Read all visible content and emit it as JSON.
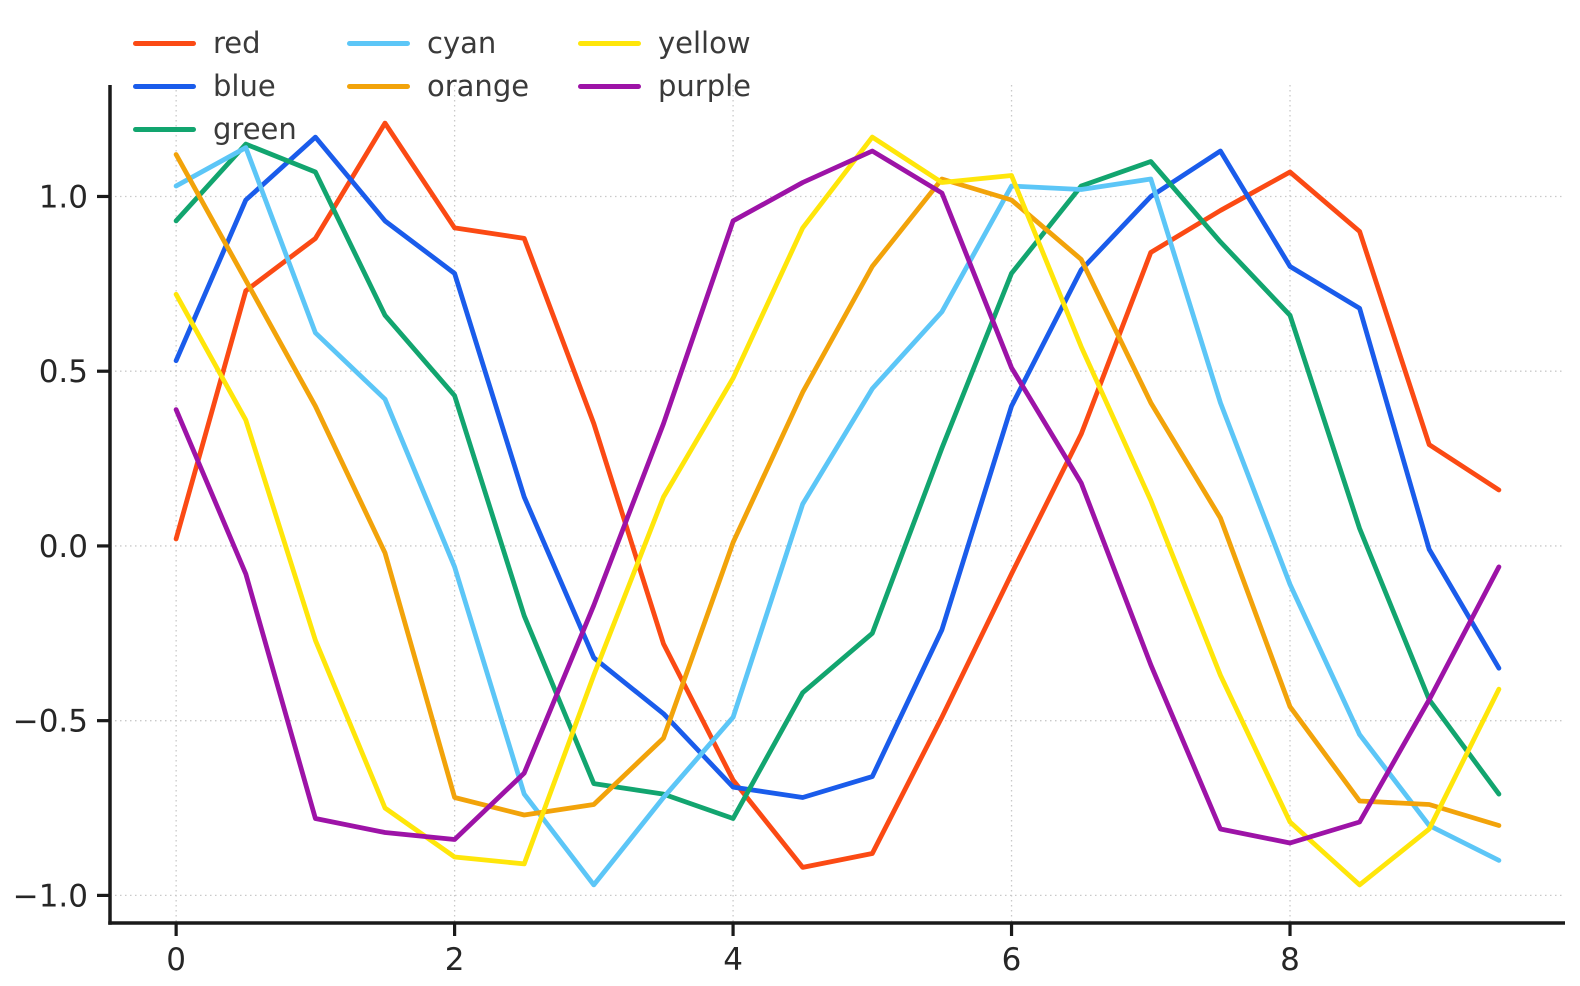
{
  "chart_data": {
    "type": "line",
    "title": "",
    "xlabel": "",
    "ylabel": "",
    "grid": true,
    "legend_position": "upper-left",
    "x": [
      0,
      0.5,
      1,
      1.5,
      2,
      2.5,
      3,
      3.5,
      4,
      4.5,
      5,
      5.5,
      6,
      6.5,
      7,
      7.5,
      8,
      8.5,
      9,
      9.5
    ],
    "series": [
      {
        "name": "red",
        "color": "#fb4a14",
        "values": [
          0.02,
          0.73,
          0.88,
          1.21,
          0.91,
          0.88,
          0.35,
          -0.28,
          -0.67,
          -0.92,
          -0.88,
          -0.49,
          -0.08,
          0.32,
          0.84,
          0.96,
          1.07,
          0.9,
          0.29,
          0.16
        ]
      },
      {
        "name": "blue",
        "color": "#1a5ceb",
        "values": [
          0.53,
          0.99,
          1.17,
          0.93,
          0.78,
          0.14,
          -0.32,
          -0.48,
          -0.69,
          -0.72,
          -0.66,
          -0.24,
          0.4,
          0.79,
          1.0,
          1.13,
          0.8,
          0.68,
          -0.01,
          -0.35
        ]
      },
      {
        "name": "green",
        "color": "#12a56f",
        "values": [
          0.93,
          1.15,
          1.07,
          0.66,
          0.43,
          -0.2,
          -0.68,
          -0.71,
          -0.78,
          -0.42,
          -0.25,
          0.28,
          0.78,
          1.03,
          1.1,
          0.87,
          0.66,
          0.05,
          -0.44,
          -0.71
        ]
      },
      {
        "name": "cyan",
        "color": "#5cc6f7",
        "values": [
          1.03,
          1.14,
          0.61,
          0.42,
          -0.06,
          -0.71,
          -0.97,
          -0.72,
          -0.49,
          0.12,
          0.45,
          0.67,
          1.03,
          1.02,
          1.05,
          0.41,
          -0.11,
          -0.54,
          -0.8,
          -0.9
        ]
      },
      {
        "name": "orange",
        "color": "#f2a30a",
        "values": [
          1.12,
          0.76,
          0.4,
          -0.02,
          -0.72,
          -0.77,
          -0.74,
          -0.55,
          0.01,
          0.44,
          0.8,
          1.05,
          0.99,
          0.82,
          0.41,
          0.08,
          -0.46,
          -0.73,
          -0.74,
          -0.8
        ]
      },
      {
        "name": "yellow",
        "color": "#ffe60a",
        "values": [
          0.72,
          0.36,
          -0.27,
          -0.75,
          -0.89,
          -0.91,
          -0.37,
          0.14,
          0.48,
          0.91,
          1.17,
          1.04,
          1.06,
          0.57,
          0.13,
          -0.37,
          -0.79,
          -0.97,
          -0.81,
          -0.41
        ]
      },
      {
        "name": "purple",
        "color": "#9d13a7",
        "values": [
          0.39,
          -0.08,
          -0.78,
          -0.82,
          -0.84,
          -0.65,
          -0.17,
          0.35,
          0.93,
          1.04,
          1.13,
          1.01,
          0.51,
          0.18,
          -0.34,
          -0.81,
          -0.85,
          -0.79,
          -0.44,
          -0.06
        ]
      }
    ],
    "x_ticks": {
      "values": [
        0,
        2,
        4,
        6,
        8
      ],
      "labels": [
        "0",
        "2",
        "4",
        "6",
        "8"
      ]
    },
    "y_ticks": {
      "values": [
        -1.0,
        -0.5,
        0.0,
        0.5,
        1.0
      ],
      "labels": [
        "−1.0",
        "−0.5",
        "0.0",
        "0.5",
        "1.0"
      ]
    },
    "xlim": [
      -0.475,
      9.975
    ],
    "ylim": [
      -1.079,
      1.319
    ]
  },
  "legend": {
    "columns": [
      [
        {
          "label": "red",
          "color": "#fb4a14"
        },
        {
          "label": "blue",
          "color": "#1a5ceb"
        },
        {
          "label": "green",
          "color": "#12a56f"
        }
      ],
      [
        {
          "label": "cyan",
          "color": "#5cc6f7"
        },
        {
          "label": "orange",
          "color": "#f2a30a"
        }
      ],
      [
        {
          "label": "yellow",
          "color": "#ffe60a"
        },
        {
          "label": "purple",
          "color": "#9d13a7"
        }
      ]
    ]
  },
  "styles": {
    "background": "#ffffff",
    "spine_color": "#1a1a1a",
    "grid_color": "#c9c9c9",
    "tick_label_color": "#262626",
    "legend_text_color": "#3a3a3a"
  }
}
